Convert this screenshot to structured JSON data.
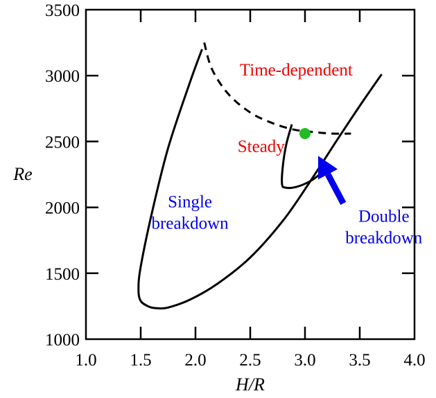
{
  "chart_data": {
    "type": "line",
    "xlabel_italic": "H",
    "xlabel_rest": "/R",
    "ylabel": "Re",
    "xlim": [
      1.0,
      4.0
    ],
    "ylim": [
      1000,
      3500
    ],
    "x_ticks": [
      "1.0",
      "1.5",
      "2.0",
      "2.5",
      "3.0",
      "3.5",
      "4.0"
    ],
    "y_ticks": [
      "1000",
      "1500",
      "2000",
      "2500",
      "3000",
      "3500"
    ],
    "series": [
      {
        "style": "solid",
        "color": "#000000",
        "x": [
          2.06,
          1.95,
          1.75,
          1.6,
          1.5,
          1.48,
          1.5,
          1.58,
          1.65,
          1.75,
          1.95,
          2.2,
          2.5,
          2.8,
          3.05,
          3.3,
          3.5,
          3.7
        ],
        "y": [
          3200,
          2950,
          2450,
          1950,
          1550,
          1380,
          1290,
          1245,
          1235,
          1240,
          1300,
          1420,
          1620,
          1900,
          2200,
          2520,
          2770,
          3010
        ]
      },
      {
        "style": "solid",
        "color": "#000000",
        "x": [
          2.88,
          2.83,
          2.8,
          2.79,
          2.82,
          2.92,
          3.05,
          3.15
        ],
        "y": [
          2630,
          2480,
          2330,
          2180,
          2150,
          2155,
          2200,
          2260
        ]
      },
      {
        "style": "dashed",
        "color": "#000000",
        "x": [
          2.08,
          2.15,
          2.3,
          2.5,
          2.7,
          2.9,
          3.1,
          3.25,
          3.42
        ],
        "y": [
          3250,
          3050,
          2860,
          2720,
          2640,
          2590,
          2570,
          2560,
          2560
        ]
      }
    ],
    "marker": {
      "x": 3.0,
      "y": 2560,
      "color": "#22bb22"
    },
    "arrow": {
      "from": [
        3.35,
        2030
      ],
      "to": [
        3.12,
        2390
      ],
      "color": "#0000ee"
    },
    "annotations": [
      {
        "id": "time-dependent",
        "lines": [
          "Time-dependent"
        ],
        "color": "#ee0000",
        "x": 2.92,
        "y": 3000
      },
      {
        "id": "steady",
        "lines": [
          "Steady"
        ],
        "color": "#ee0000",
        "x": 2.6,
        "y": 2420
      },
      {
        "id": "single-breakdown",
        "lines": [
          "Single",
          "breakdown"
        ],
        "color": "#0000ee",
        "x": 1.95,
        "y": 2000
      },
      {
        "id": "double-breakdown",
        "lines": [
          "Double",
          "breakdown"
        ],
        "color": "#0000ee",
        "x": 3.72,
        "y": 1890
      }
    ]
  }
}
